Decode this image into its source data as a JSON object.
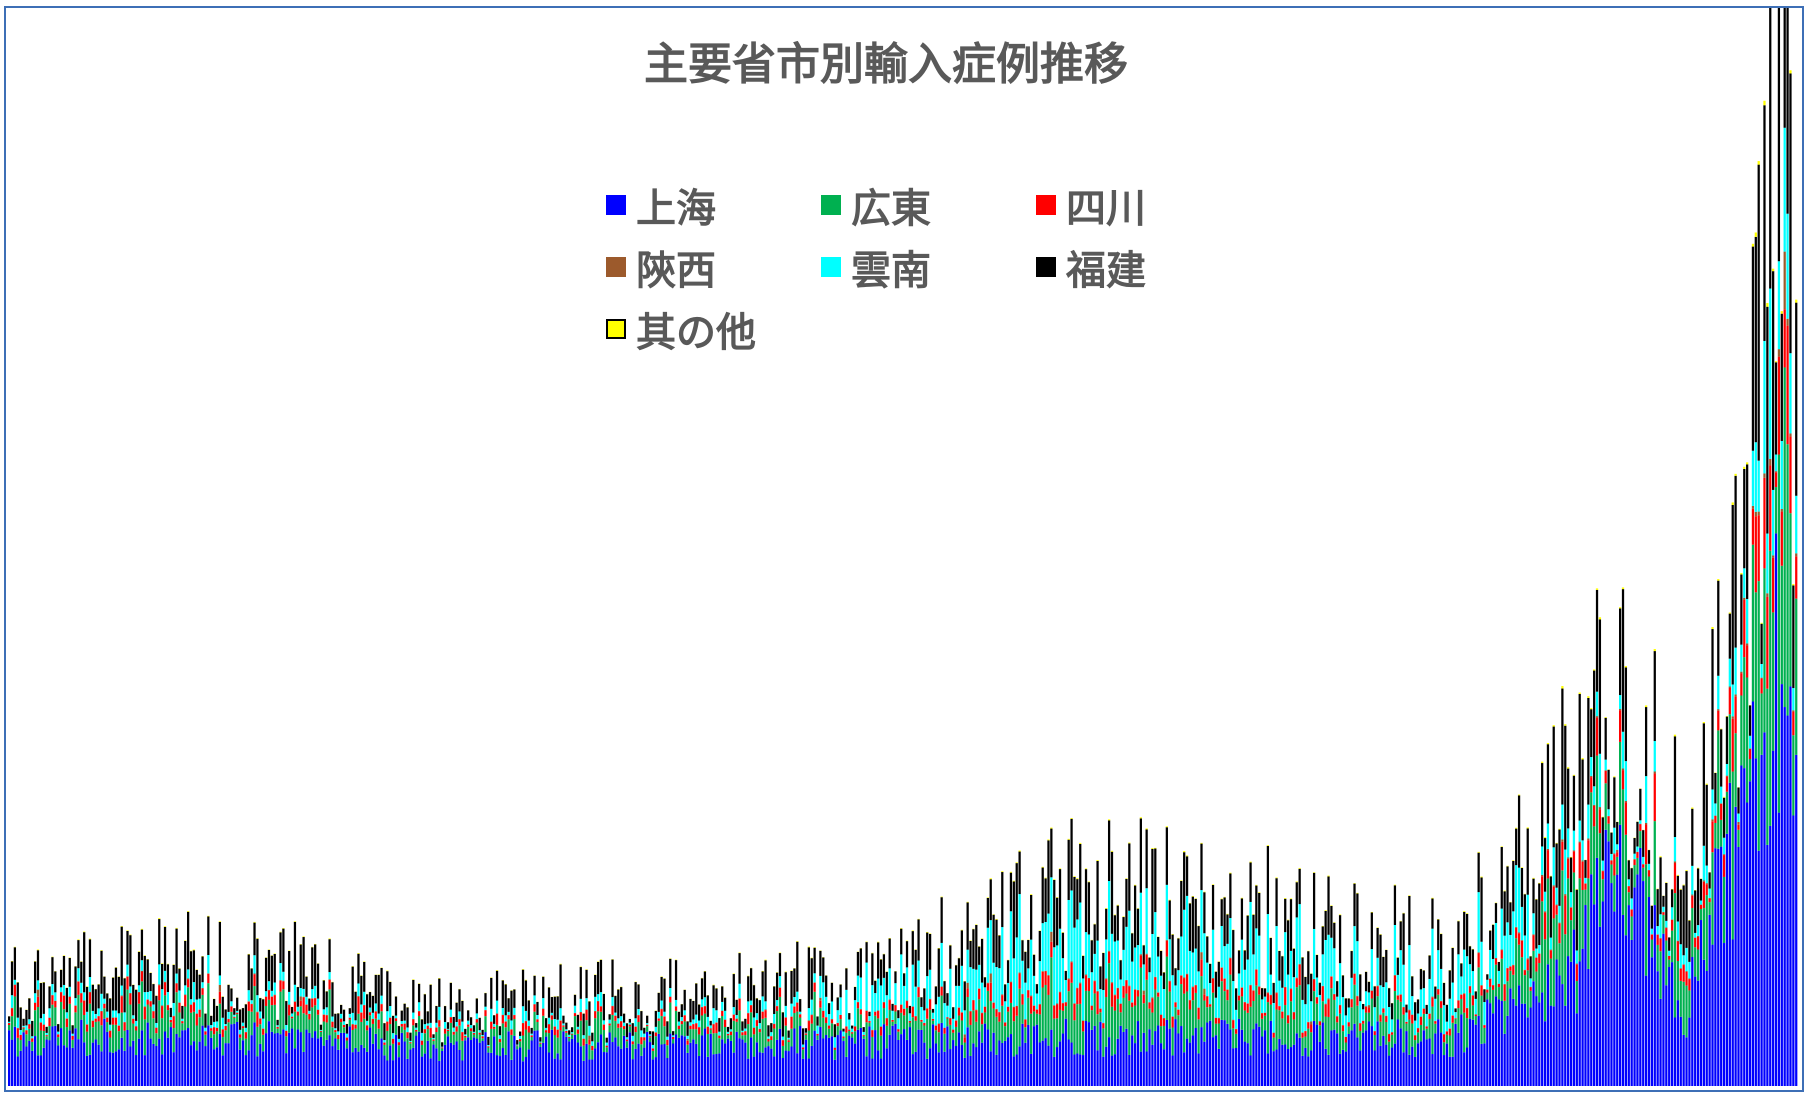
{
  "colors": {
    "frame": "#3d6fb6",
    "title": "#595959"
  },
  "chart_data": {
    "type": "bar",
    "stacked": true,
    "title": "主要省市別輸入症例推移",
    "xlabel": "",
    "ylabel": "",
    "axes_visible": false,
    "grid": false,
    "legend_position": "top-center",
    "series": [
      {
        "name": "上海",
        "color": "#0000ff"
      },
      {
        "name": "広東",
        "color": "#00b050"
      },
      {
        "name": "四川",
        "color": "#ff0000"
      },
      {
        "name": "陝西",
        "color": "#9c5a2c"
      },
      {
        "name": "雲南",
        "color": "#00ffff"
      },
      {
        "name": "福建",
        "color": "#000000"
      },
      {
        "name": "其の他",
        "color": "#ffff00",
        "outlined": true
      }
    ],
    "period_count": 620,
    "trend_keypoints": [
      {
        "period": 0,
        "上海": 22,
        "total": 44
      },
      {
        "period": 80,
        "上海": 22,
        "total": 58
      },
      {
        "period": 150,
        "上海": 18,
        "total": 35
      },
      {
        "period": 300,
        "上海": 20,
        "total": 48
      },
      {
        "period": 370,
        "上海": 22,
        "total": 88
      },
      {
        "period": 430,
        "上海": 22,
        "total": 78
      },
      {
        "period": 500,
        "上海": 22,
        "total": 58
      },
      {
        "period": 540,
        "上海": 45,
        "total": 130
      },
      {
        "period": 560,
        "上海": 110,
        "total": 185
      },
      {
        "period": 580,
        "上海": 32,
        "total": 100
      },
      {
        "period": 600,
        "上海": 120,
        "total": 210
      },
      {
        "period": 615,
        "上海": 200,
        "total": 430
      },
      {
        "period": 619,
        "上海": 150,
        "total": 340
      }
    ]
  }
}
